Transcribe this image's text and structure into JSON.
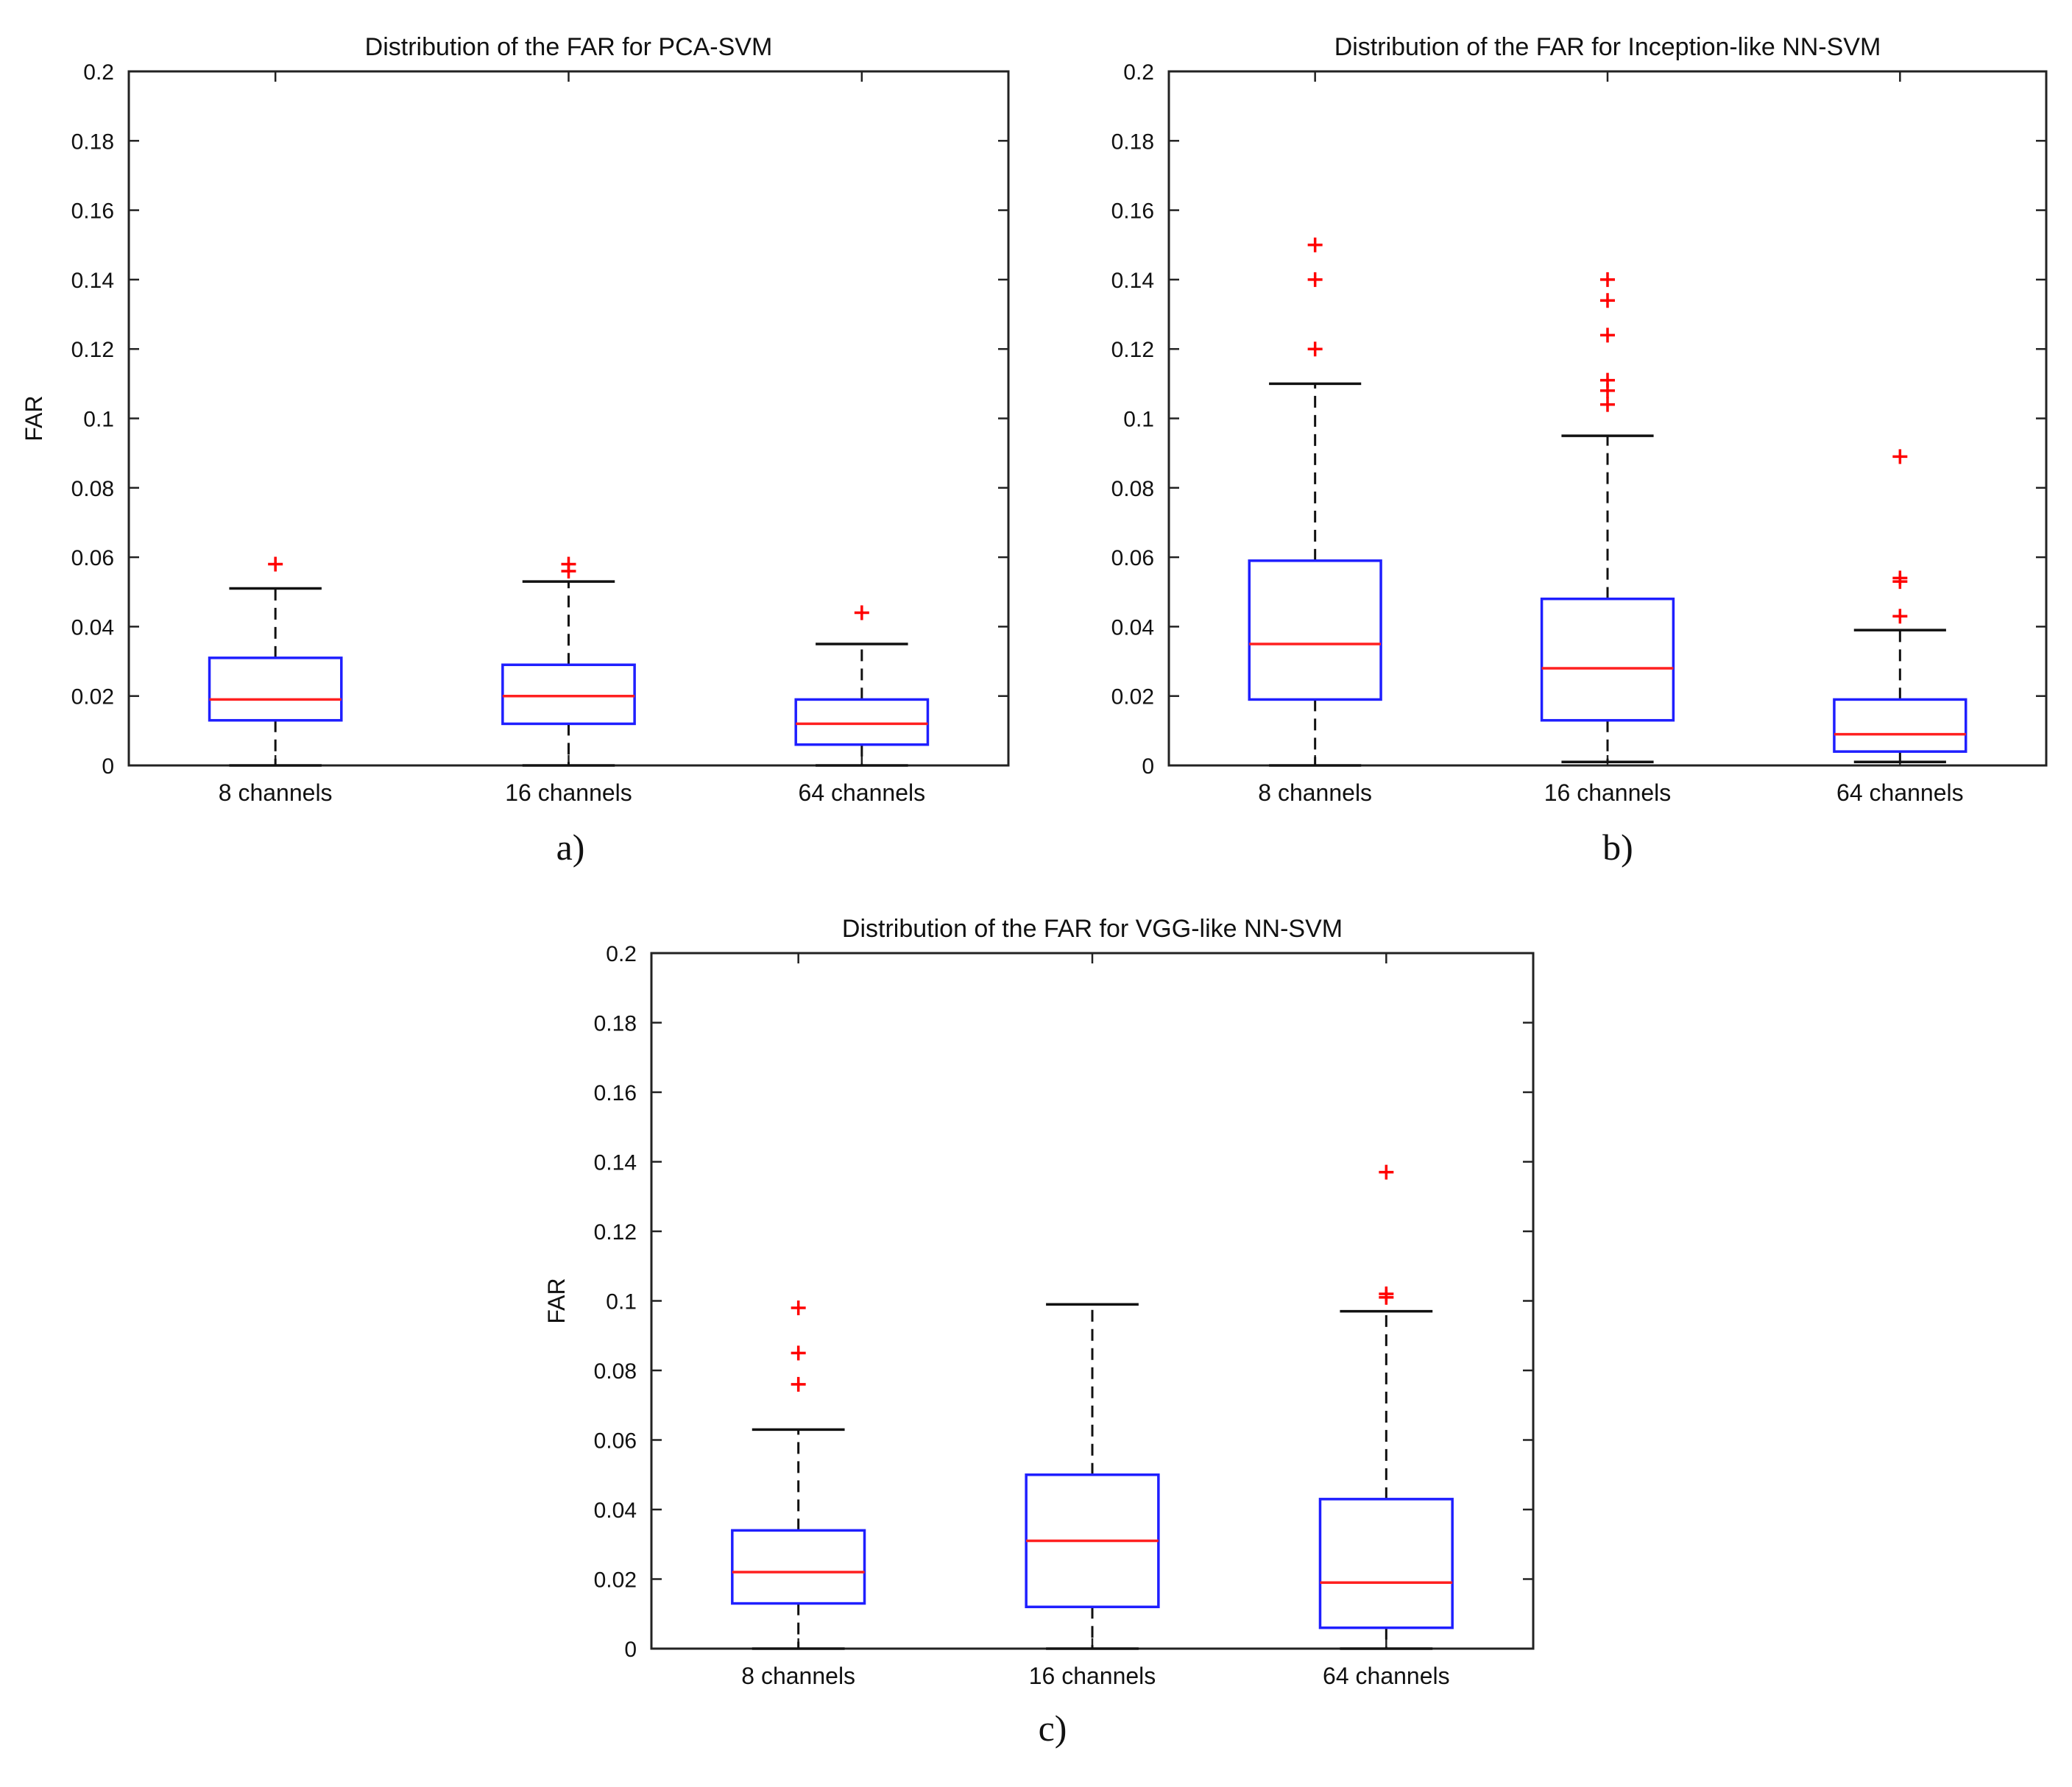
{
  "panels": [
    {
      "caption": "a)"
    },
    {
      "caption": "b)"
    },
    {
      "caption": "c)"
    }
  ],
  "colors": {
    "box": "#1f1fff",
    "median": "#ff2020",
    "outlier": "#ff0000",
    "whisker": "#111111",
    "axes": "#222222"
  },
  "chart_data": [
    {
      "type": "box",
      "title": "Distribution of the FAR for PCA-SVM",
      "xlabel": "",
      "ylabel": "FAR",
      "ylim": [
        0,
        0.2
      ],
      "yticks": [
        "0",
        "0.02",
        "0.04",
        "0.06",
        "0.08",
        "0.1",
        "0.12",
        "0.14",
        "0.16",
        "0.18",
        "0.2"
      ],
      "categories": [
        "8 channels",
        "16 channels",
        "64 channels"
      ],
      "boxes": [
        {
          "whisker_low": 0,
          "q1": 0.013,
          "median": 0.019,
          "q3": 0.031,
          "whisker_high": 0.051,
          "outliers": [
            0.058
          ]
        },
        {
          "whisker_low": 0,
          "q1": 0.012,
          "median": 0.02,
          "q3": 0.029,
          "whisker_high": 0.053,
          "outliers": [
            0.056,
            0.058
          ]
        },
        {
          "whisker_low": 0,
          "q1": 0.006,
          "median": 0.012,
          "q3": 0.019,
          "whisker_high": 0.035,
          "outliers": [
            0.044
          ]
        }
      ]
    },
    {
      "type": "box",
      "title": "Distribution of the FAR for Inception-like NN-SVM",
      "xlabel": "",
      "ylabel": "",
      "ylim": [
        0,
        0.2
      ],
      "yticks": [
        "0",
        "0.02",
        "0.04",
        "0.06",
        "0.08",
        "0.1",
        "0.12",
        "0.14",
        "0.16",
        "0.18",
        "0.2"
      ],
      "categories": [
        "8 channels",
        "16 channels",
        "64 channels"
      ],
      "boxes": [
        {
          "whisker_low": 0,
          "q1": 0.019,
          "median": 0.035,
          "q3": 0.059,
          "whisker_high": 0.11,
          "outliers": [
            0.12,
            0.14,
            0.15
          ]
        },
        {
          "whisker_low": 0.001,
          "q1": 0.013,
          "median": 0.028,
          "q3": 0.048,
          "whisker_high": 0.095,
          "outliers": [
            0.104,
            0.108,
            0.111,
            0.124,
            0.134,
            0.14
          ]
        },
        {
          "whisker_low": 0.001,
          "q1": 0.004,
          "median": 0.009,
          "q3": 0.019,
          "whisker_high": 0.039,
          "outliers": [
            0.043,
            0.053,
            0.054,
            0.089
          ]
        }
      ]
    },
    {
      "type": "box",
      "title": "Distribution of the FAR for VGG-like NN-SVM",
      "xlabel": "",
      "ylabel": "FAR",
      "ylim": [
        0,
        0.2
      ],
      "yticks": [
        "0",
        "0.02",
        "0.04",
        "0.06",
        "0.08",
        "0.1",
        "0.12",
        "0.14",
        "0.16",
        "0.18",
        "0.2"
      ],
      "categories": [
        "8 channels",
        "16 channels",
        "64 channels"
      ],
      "boxes": [
        {
          "whisker_low": 0,
          "q1": 0.013,
          "median": 0.022,
          "q3": 0.034,
          "whisker_high": 0.063,
          "outliers": [
            0.076,
            0.085,
            0.098
          ]
        },
        {
          "whisker_low": 0,
          "q1": 0.012,
          "median": 0.031,
          "q3": 0.05,
          "whisker_high": 0.099,
          "outliers": []
        },
        {
          "whisker_low": 0,
          "q1": 0.006,
          "median": 0.019,
          "q3": 0.043,
          "whisker_high": 0.097,
          "outliers": [
            0.101,
            0.102,
            0.137
          ]
        }
      ]
    }
  ]
}
